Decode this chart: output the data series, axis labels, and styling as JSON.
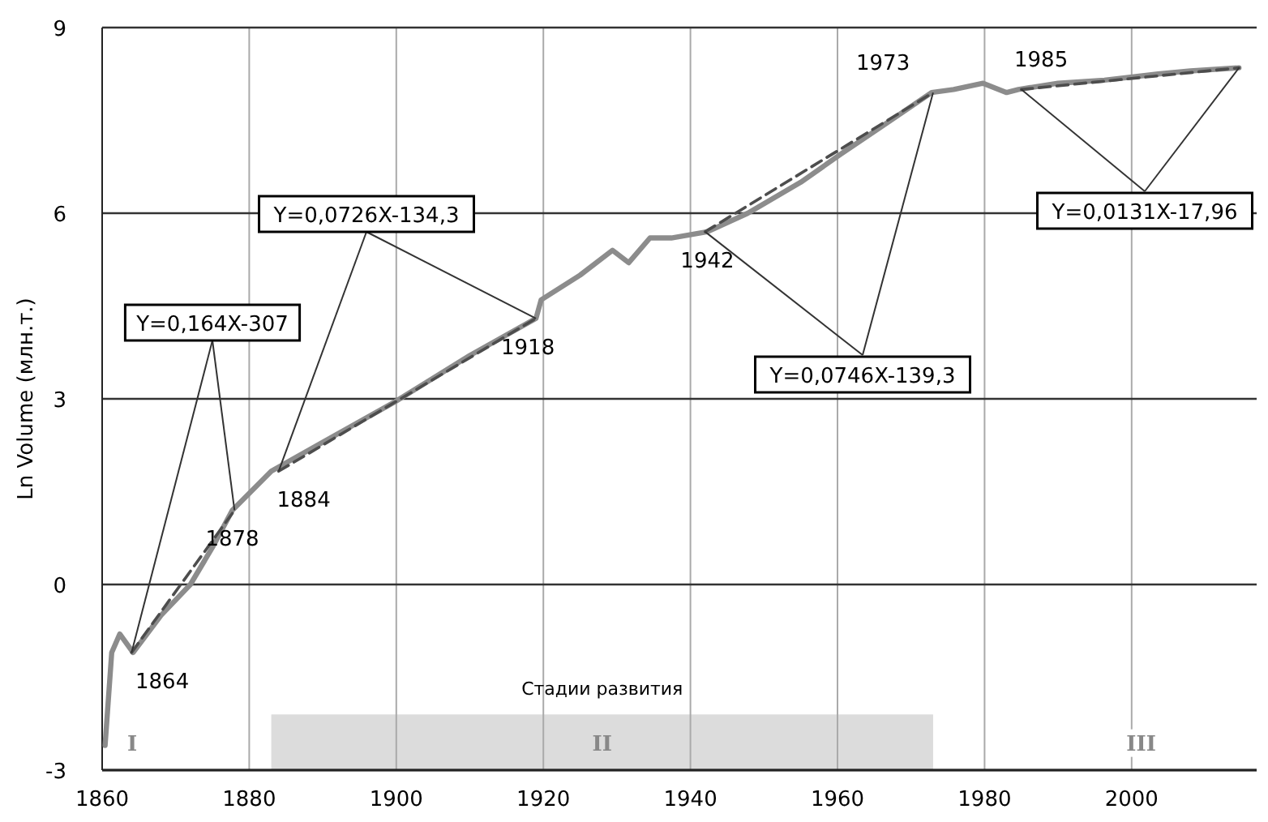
{
  "chart_data": {
    "type": "line",
    "ylabel": "Ln Volume (млн.т.)",
    "xlim": [
      1860,
      2017
    ],
    "xticks": [
      1860,
      1880,
      1900,
      1920,
      1940,
      1960,
      1980,
      2000
    ],
    "ylim": [
      -3,
      9
    ],
    "yticks": [
      -3,
      0,
      3,
      6,
      9
    ],
    "grid": true,
    "marker": "none",
    "series": [
      {
        "color": "#8c8c8c",
        "line_style": "solid",
        "x": [
          1860.4,
          1861.3,
          1862.4,
          1864.2,
          1868,
          1872,
          1875,
          1877.7,
          1883,
          1890,
          1899.8,
          1910,
          1919,
          1919.7,
          1925,
          1929.4,
          1931.6,
          1934.5,
          1937.4,
          1942.3,
          1947.8,
          1955,
          1960.4,
          1966,
          1972.8,
          1975.8,
          1979.8,
          1983,
          1984.6,
          1990,
          1996.3,
          2003.6,
          2008,
          2014.6
        ],
        "values": [
          -2.6,
          -1.1,
          -0.8,
          -1.1,
          -0.5,
          0,
          0.6,
          1.2,
          1.83,
          2.3,
          2.95,
          3.7,
          4.3,
          4.6,
          5.0,
          5.4,
          5.2,
          5.6,
          5.6,
          5.7,
          6.0,
          6.5,
          6.95,
          7.4,
          7.95,
          8.0,
          8.1,
          7.95,
          8.0,
          8.1,
          8.15,
          8.25,
          8.3,
          8.35
        ]
      },
      {
        "type": "line",
        "color": "#4d4d4d",
        "line_style": "dashed",
        "x": [
          1864,
          1878
        ],
        "values": [
          -1.1,
          1.2
        ]
      },
      {
        "type": "line",
        "color": "#4d4d4d",
        "line_style": "dashed",
        "x": [
          1884,
          1919
        ],
        "values": [
          1.83,
          4.3
        ]
      },
      {
        "type": "line",
        "color": "#4d4d4d",
        "line_style": "dashed",
        "x": [
          1942,
          1973
        ],
        "values": [
          5.7,
          7.95
        ]
      },
      {
        "type": "line",
        "color": "#4d4d4d",
        "line_style": "dashed",
        "x": [
          1985,
          2014.6
        ],
        "values": [
          8.0,
          8.35
        ]
      }
    ],
    "bands": [
      {
        "axis": "x",
        "from": 1883,
        "to": 1973,
        "label": "II",
        "color": "#dcdcdc"
      }
    ],
    "annotations": [
      {
        "text": "Y=0,164X-307",
        "x": 1864,
        "y": -1.1
      },
      {
        "text": "Y=0,0726X-134,3",
        "x": 1884,
        "y": 1.83
      },
      {
        "text": "Y=0,0746X-139,3",
        "x": 1942,
        "y": 5.7
      },
      {
        "text": "Y=0,0131X-17,96",
        "x": 1985,
        "y": 8.0
      },
      "Стадии развития",
      "I",
      "III",
      {
        "text": "1864",
        "x": 1864.2,
        "y": -1.1
      },
      {
        "text": "1878",
        "x": 1877.7,
        "y": 1.2
      },
      {
        "text": "1884",
        "x": 1883,
        "y": 1.83
      },
      {
        "text": "1918",
        "x": 1919,
        "y": 4.3
      },
      {
        "text": "1942",
        "x": 1942.3,
        "y": 5.7
      },
      {
        "text": "1973",
        "x": 1972.8,
        "y": 7.95
      },
      {
        "text": "1985",
        "x": 1984.6,
        "y": 8.0
      }
    ]
  }
}
